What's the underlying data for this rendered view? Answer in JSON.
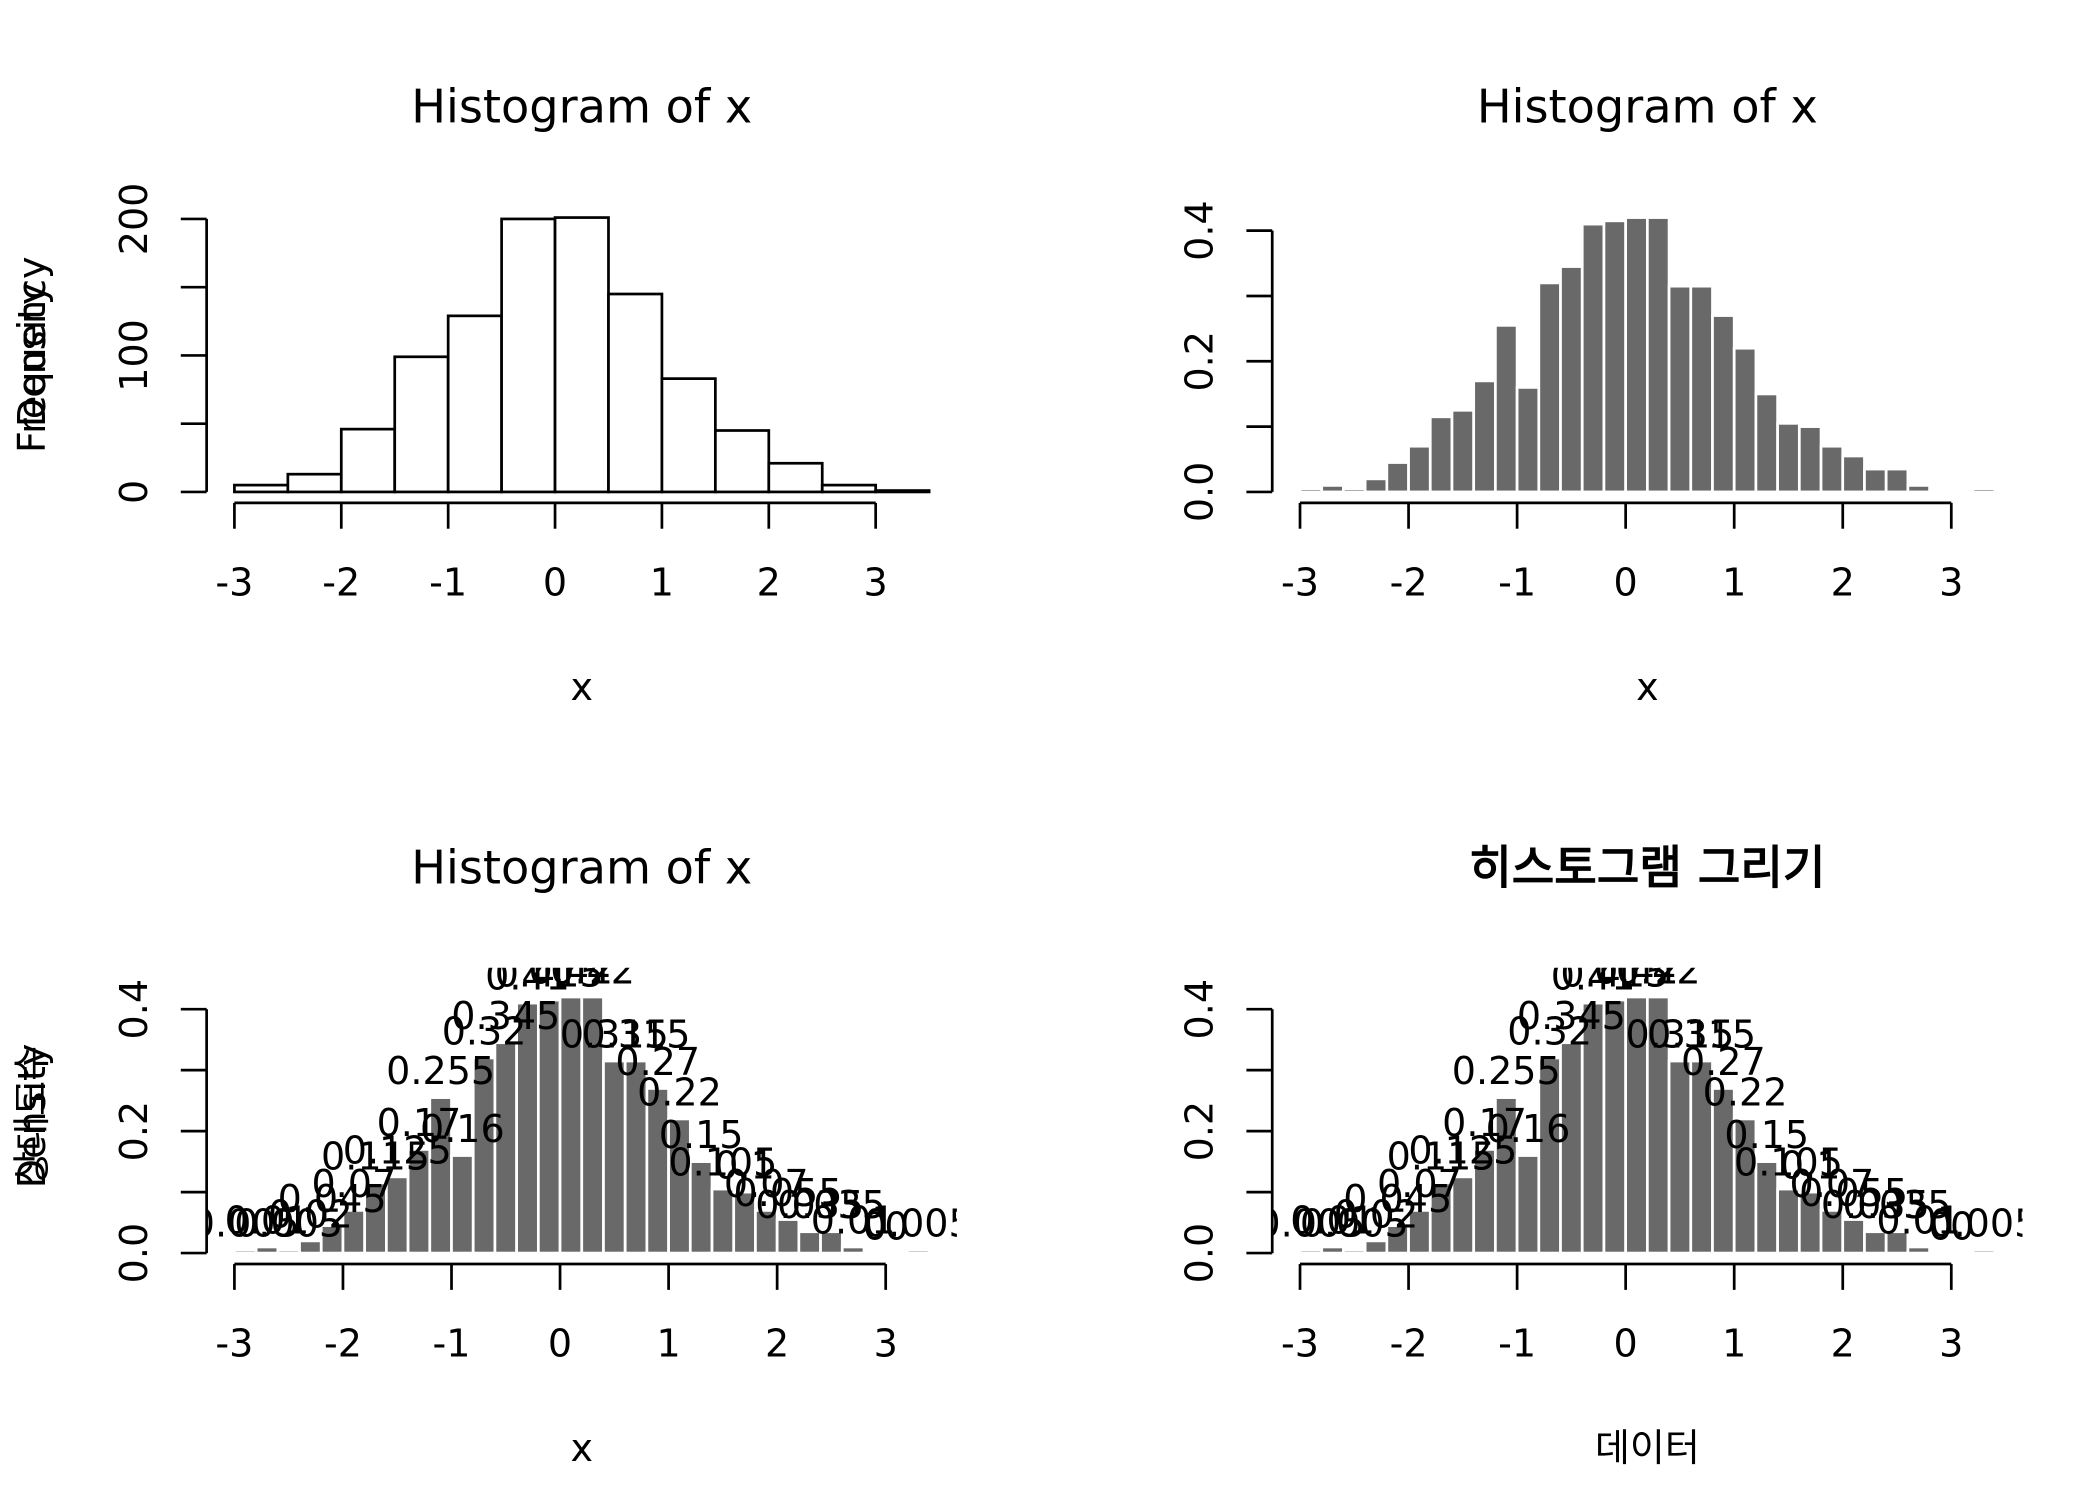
{
  "chart_data": [
    {
      "type": "histogram",
      "title": "Histogram of x",
      "x_label": "x",
      "y_label": "Frequency",
      "bins": [
        -3,
        -2.5,
        -2,
        -1.5,
        -1,
        -0.5,
        0,
        0.5,
        1,
        1.5,
        2,
        2.5,
        3,
        3.5
      ],
      "values": [
        5,
        13,
        46,
        99,
        129,
        200,
        201,
        145,
        83,
        45,
        21,
        5,
        1
      ],
      "color": "#ffffff",
      "border": "#000000",
      "xlim": [
        -3,
        3.5
      ],
      "xticks": [
        -3,
        -2,
        -1,
        0,
        1,
        2,
        3
      ],
      "ylim": [
        0,
        201
      ],
      "yticks": [
        0,
        100,
        200
      ],
      "yminorticks": [
        50,
        150
      ],
      "labels": false
    },
    {
      "type": "histogram",
      "title": "Histogram of x",
      "x_label": "x",
      "y_label": "Density",
      "bins": [
        -3,
        -2.8,
        -2.6,
        -2.4,
        -2.2,
        -2,
        -1.8,
        -1.6,
        -1.4,
        -1.2,
        -1,
        -0.8,
        -0.6,
        -0.4,
        -0.2,
        0,
        0.2,
        0.4,
        0.6,
        0.8,
        1,
        1.2,
        1.4,
        1.6,
        1.8,
        2,
        2.2,
        2.4,
        2.6,
        2.8,
        3,
        3.2,
        3.4
      ],
      "values": [
        0.005,
        0.01,
        0.005,
        0.02,
        0.045,
        0.07,
        0.115,
        0.125,
        0.17,
        0.255,
        0.16,
        0.32,
        0.345,
        0.41,
        0.415,
        0.42,
        0.42,
        0.315,
        0.315,
        0.27,
        0.22,
        0.15,
        0.105,
        0.1,
        0.07,
        0.055,
        0.035,
        0.035,
        0.01,
        0,
        0,
        0.005
      ],
      "color": "#696969",
      "border": "#ffffff",
      "xlim": [
        -3,
        3.4
      ],
      "xticks": [
        -3,
        -2,
        -1,
        0,
        1,
        2,
        3
      ],
      "ylim": [
        0,
        0.42
      ],
      "yticks": [
        {
          "value": 0,
          "label": "0.0"
        },
        0.2,
        0.4
      ],
      "yminorticks": [
        0.1,
        0.3
      ],
      "labels": false
    },
    {
      "type": "histogram",
      "title": "Histogram of x",
      "x_label": "x",
      "y_label": "Density",
      "bins": [
        -3,
        -2.8,
        -2.6,
        -2.4,
        -2.2,
        -2,
        -1.8,
        -1.6,
        -1.4,
        -1.2,
        -1,
        -0.8,
        -0.6,
        -0.4,
        -0.2,
        0,
        0.2,
        0.4,
        0.6,
        0.8,
        1,
        1.2,
        1.4,
        1.6,
        1.8,
        2,
        2.2,
        2.4,
        2.6,
        2.8,
        3,
        3.2,
        3.4
      ],
      "values": [
        0.005,
        0.01,
        0.005,
        0.02,
        0.045,
        0.07,
        0.115,
        0.125,
        0.17,
        0.255,
        0.16,
        0.32,
        0.345,
        0.41,
        0.415,
        0.42,
        0.42,
        0.315,
        0.315,
        0.27,
        0.22,
        0.15,
        0.105,
        0.1,
        0.07,
        0.055,
        0.035,
        0.035,
        0.01,
        0,
        0,
        0.005
      ],
      "color": "#696969",
      "border": "#ffffff",
      "xlim": [
        -3,
        3.4
      ],
      "xticks": [
        -3,
        -2,
        -1,
        0,
        1,
        2,
        3
      ],
      "ylim": [
        0,
        0.45
      ],
      "yticks": [
        {
          "value": 0,
          "label": "0.0"
        },
        0.2,
        0.4
      ],
      "yminorticks": [
        0.1,
        0.3
      ],
      "labels": true
    },
    {
      "type": "histogram",
      "title": "히스토그램 그리기",
      "title_weight": "bold",
      "x_label": "데이터",
      "y_label": "상대도수",
      "bins": [
        -3,
        -2.8,
        -2.6,
        -2.4,
        -2.2,
        -2,
        -1.8,
        -1.6,
        -1.4,
        -1.2,
        -1,
        -0.8,
        -0.6,
        -0.4,
        -0.2,
        0,
        0.2,
        0.4,
        0.6,
        0.8,
        1,
        1.2,
        1.4,
        1.6,
        1.8,
        2,
        2.2,
        2.4,
        2.6,
        2.8,
        3,
        3.2,
        3.4
      ],
      "values": [
        0.005,
        0.01,
        0.005,
        0.02,
        0.045,
        0.07,
        0.115,
        0.125,
        0.17,
        0.255,
        0.16,
        0.32,
        0.345,
        0.41,
        0.415,
        0.42,
        0.42,
        0.315,
        0.315,
        0.27,
        0.22,
        0.15,
        0.105,
        0.1,
        0.07,
        0.055,
        0.035,
        0.035,
        0.01,
        0,
        0,
        0.005
      ],
      "color": "#696969",
      "border": "#ffffff",
      "xlim": [
        -3,
        3.4
      ],
      "xticks": [
        -3,
        -2,
        -1,
        0,
        1,
        2,
        3
      ],
      "ylim": [
        0,
        0.45
      ],
      "yticks": [
        {
          "value": 0,
          "label": "0.0"
        },
        0.2,
        0.4
      ],
      "yminorticks": [
        0.1,
        0.3
      ],
      "labels": true
    }
  ]
}
